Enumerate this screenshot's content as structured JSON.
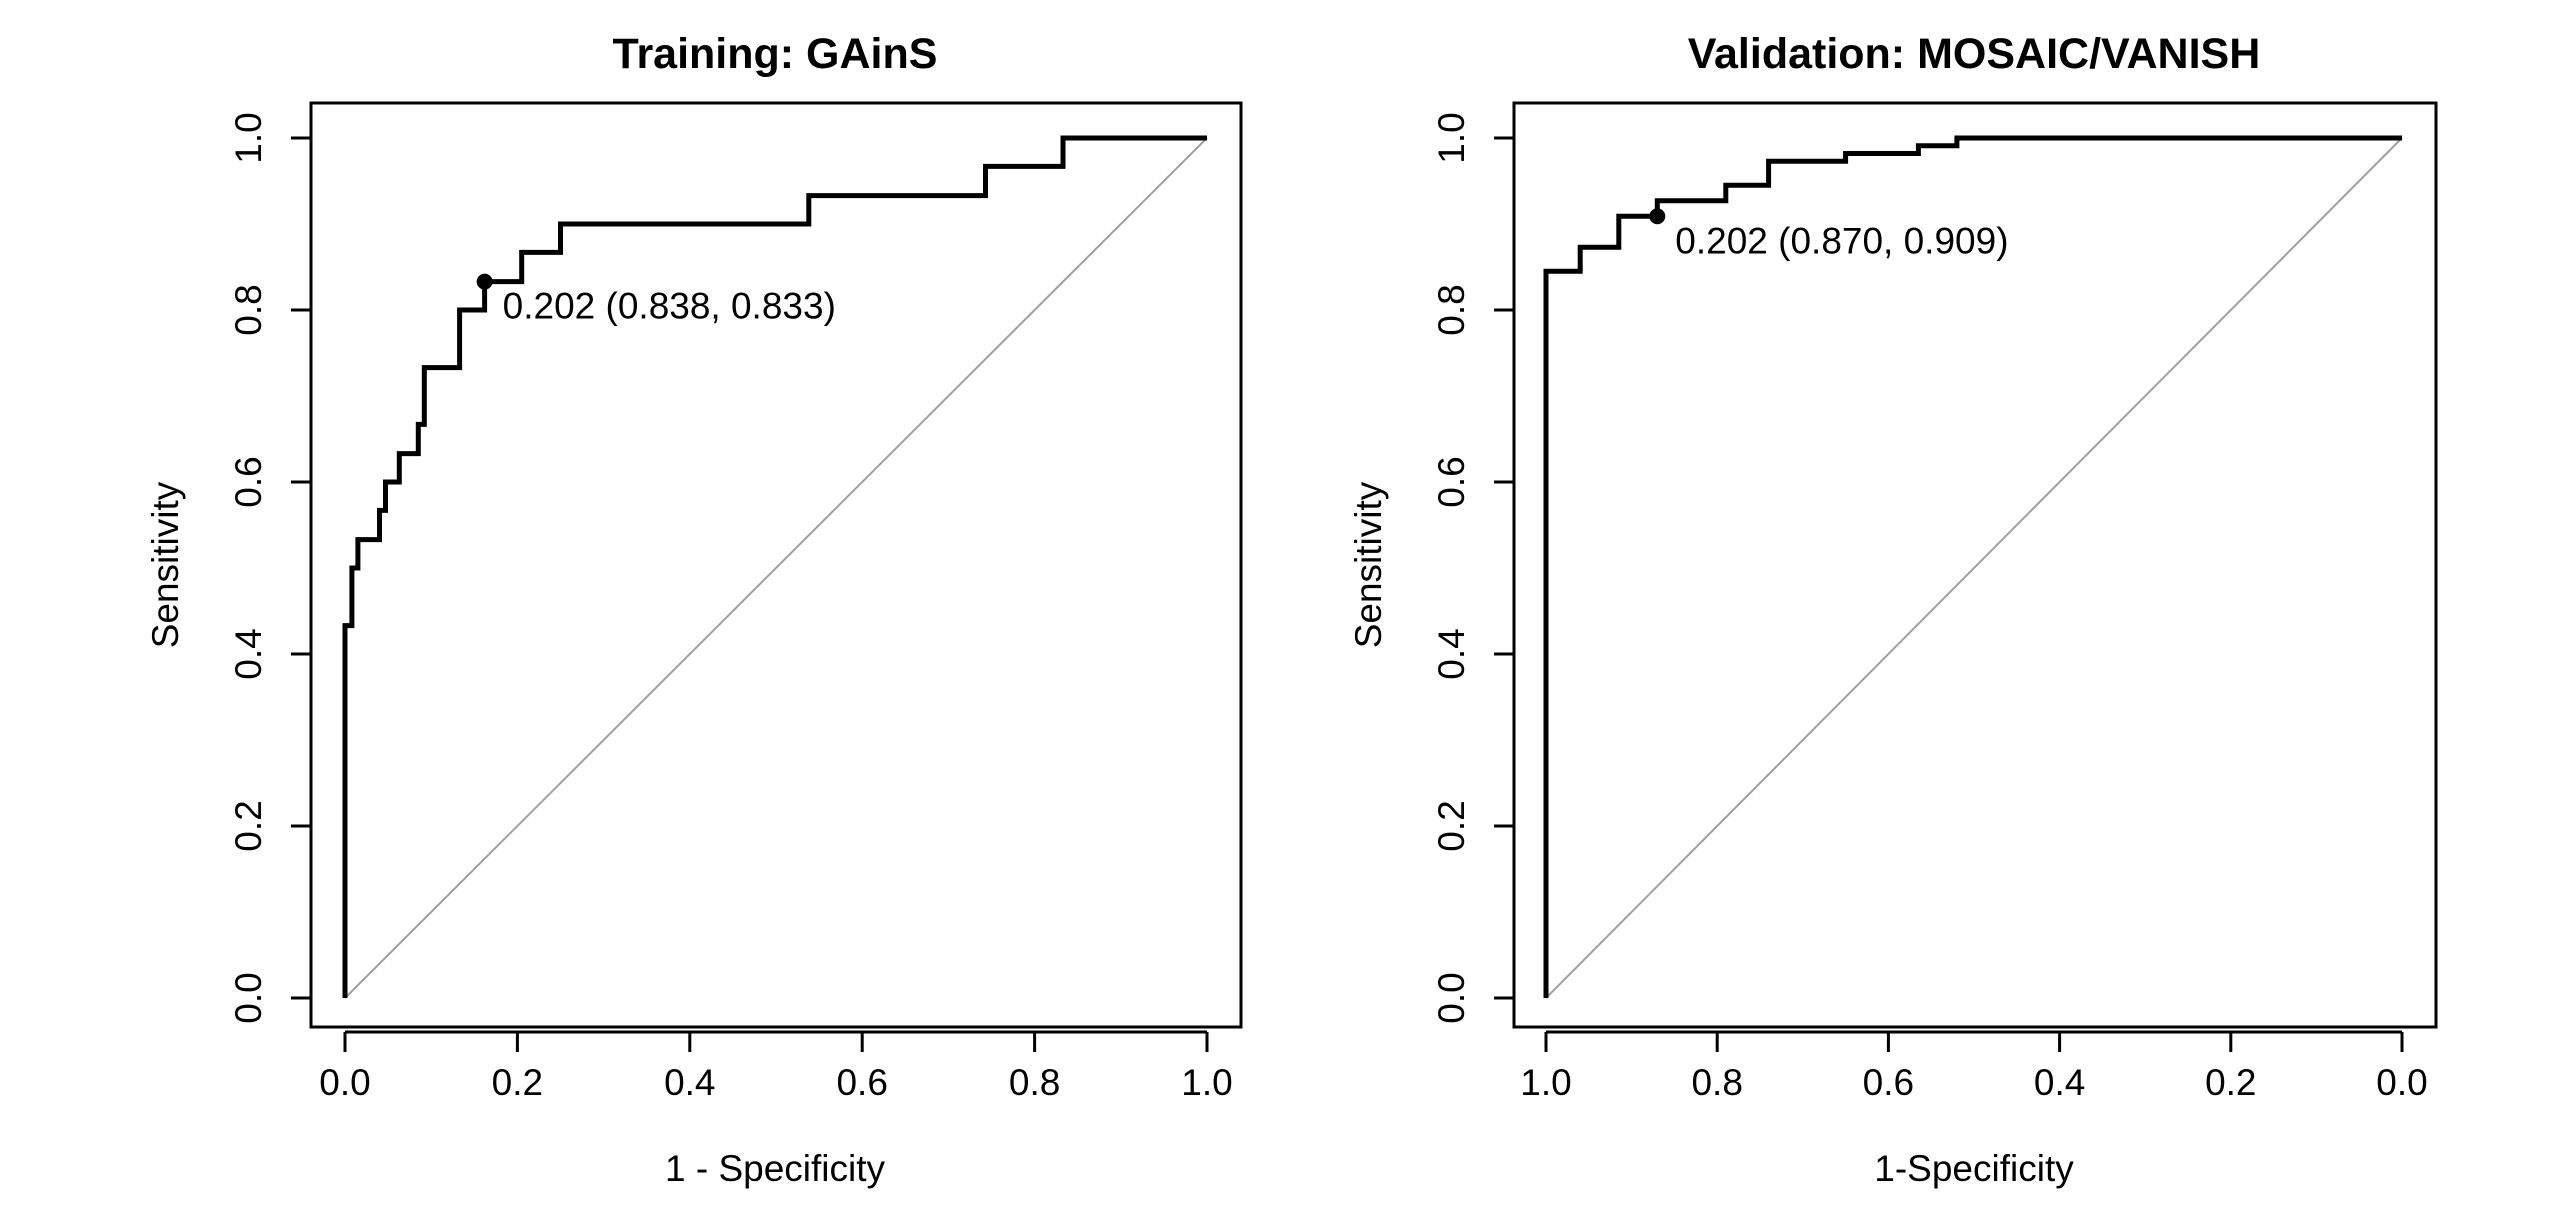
{
  "colors": {
    "curve": "#000000",
    "diagonal": "#a0a0a0",
    "frame": "#000000",
    "background": "#ffffff"
  },
  "chart_data": [
    {
      "type": "line",
      "title": "Training: GAinS",
      "xlabel": "1 - Specificity",
      "ylabel": "Sensitivity",
      "xlim": [
        0,
        1
      ],
      "ylim": [
        0,
        1
      ],
      "x_reversed": false,
      "x_ticks": [
        0,
        0.2,
        0.4,
        0.6,
        0.8,
        1
      ],
      "x_tick_labels": [
        "0.0",
        "0.2",
        "0.4",
        "0.6",
        "0.8",
        "1.0"
      ],
      "y_ticks": [
        0,
        0.2,
        0.4,
        0.6,
        0.8,
        1
      ],
      "y_tick_labels": [
        "0.0",
        "0.2",
        "0.4",
        "0.6",
        "0.8",
        "1.0"
      ],
      "grid": false,
      "legend": "none",
      "diagonal": {
        "x": [
          0,
          1
        ],
        "y": [
          0,
          1
        ]
      },
      "series": [
        {
          "x": [
            0,
            0,
            0.008,
            0.008,
            0.015,
            0.015,
            0.04,
            0.04,
            0.047,
            0.047,
            0.063,
            0.063,
            0.085,
            0.085,
            0.092,
            0.092,
            0.133,
            0.133,
            0.162,
            0.162,
            0.205,
            0.205,
            0.25,
            0.25,
            0.538,
            0.538,
            0.743,
            0.743,
            0.833,
            0.833,
            1
          ],
          "y": [
            0,
            0.433,
            0.433,
            0.5,
            0.5,
            0.533,
            0.533,
            0.567,
            0.567,
            0.6,
            0.6,
            0.633,
            0.633,
            0.667,
            0.667,
            0.733,
            0.733,
            0.8,
            0.8,
            0.833,
            0.833,
            0.867,
            0.867,
            0.9,
            0.9,
            0.933,
            0.933,
            0.967,
            0.967,
            1,
            1
          ]
        }
      ],
      "annotations": [
        {
          "x": 0.162,
          "y": 0.833,
          "text": "0.202 (0.838, 0.833)"
        }
      ]
    },
    {
      "type": "line",
      "title": "Validation: MOSAIC/VANISH",
      "xlabel": "1-Specificity",
      "ylabel": "Sensitivity",
      "xlim": [
        1,
        0
      ],
      "ylim": [
        0,
        1
      ],
      "x_reversed": true,
      "x_ticks": [
        1,
        0.8,
        0.6,
        0.4,
        0.2,
        0
      ],
      "x_tick_labels": [
        "1.0",
        "0.8",
        "0.6",
        "0.4",
        "0.2",
        "0.0"
      ],
      "y_ticks": [
        0,
        0.2,
        0.4,
        0.6,
        0.8,
        1
      ],
      "y_tick_labels": [
        "0.0",
        "0.2",
        "0.4",
        "0.6",
        "0.8",
        "1.0"
      ],
      "grid": false,
      "legend": "none",
      "diagonal": {
        "x": [
          1,
          0
        ],
        "y": [
          0,
          1
        ]
      },
      "series": [
        {
          "x": [
            1,
            1,
            0.96,
            0.96,
            0.915,
            0.915,
            0.87,
            0.87,
            0.79,
            0.79,
            0.74,
            0.74,
            0.65,
            0.65,
            0.565,
            0.565,
            0.52,
            0.52,
            0
          ],
          "y": [
            0,
            0.845,
            0.845,
            0.873,
            0.873,
            0.909,
            0.909,
            0.927,
            0.927,
            0.945,
            0.945,
            0.973,
            0.973,
            0.982,
            0.982,
            0.991,
            0.991,
            1,
            1
          ]
        }
      ],
      "annotations": [
        {
          "x": 0.87,
          "y": 0.909,
          "text": "0.202 (0.870, 0.909)"
        }
      ]
    }
  ]
}
